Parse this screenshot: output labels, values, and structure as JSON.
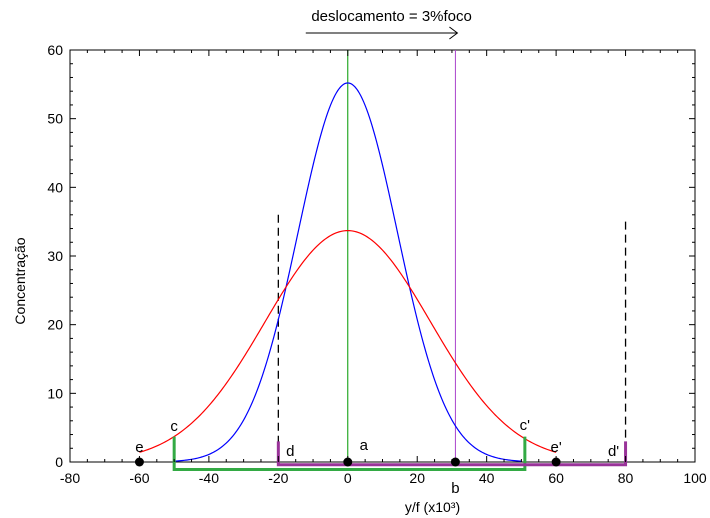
{
  "chart_data": {
    "type": "line",
    "title": "",
    "xlabel": "y/f (x10³)",
    "ylabel": "Concentração",
    "xlim": [
      -80,
      100
    ],
    "ylim": [
      0,
      60
    ],
    "xticks": [
      -80,
      -60,
      -40,
      -20,
      0,
      20,
      40,
      60,
      80,
      100
    ],
    "yticks": [
      0,
      10,
      20,
      30,
      40,
      50,
      60
    ],
    "grid": false,
    "annotation": "deslocamento = 3%foco",
    "series": [
      {
        "color": "#0000ff",
        "peak": 55.2,
        "center": 0,
        "sigma": 14.3,
        "x_range": [
          -50,
          50
        ]
      },
      {
        "color": "#ff0000",
        "peak": 33.7,
        "center": 0,
        "sigma": 23.8,
        "x_range": [
          -60,
          60
        ]
      }
    ],
    "vertical_lines": [
      {
        "x": 0,
        "color": "#009900",
        "style": "solid"
      },
      {
        "x": 31,
        "color": "#aa44cc",
        "style": "solid"
      },
      {
        "x": -20,
        "y_top": 36,
        "color": "#000000",
        "style": "dashed"
      },
      {
        "x": 80,
        "y_top": 35,
        "color": "#000000",
        "style": "dashed"
      }
    ],
    "brackets": [
      {
        "x1": -50,
        "x2": 51,
        "color": "#33aa44",
        "y_top": 3.7,
        "y_bottom": -1.1
      },
      {
        "x1": -20,
        "x2": 80,
        "color": "#993399",
        "y_top": 3,
        "y_bottom": -0.4
      }
    ],
    "points": [
      {
        "label": "e",
        "x": -60,
        "y": 0
      },
      {
        "label": "a",
        "x": 0,
        "y": 0
      },
      {
        "label": "b",
        "x": 31,
        "y": 0
      },
      {
        "label": "e'",
        "x": 60,
        "y": 0
      }
    ],
    "point_labels": [
      {
        "text": "c",
        "x": -50
      },
      {
        "text": "d",
        "x": -20
      },
      {
        "text": "c'",
        "x": 51
      },
      {
        "text": "d'",
        "x": 80
      }
    ]
  }
}
